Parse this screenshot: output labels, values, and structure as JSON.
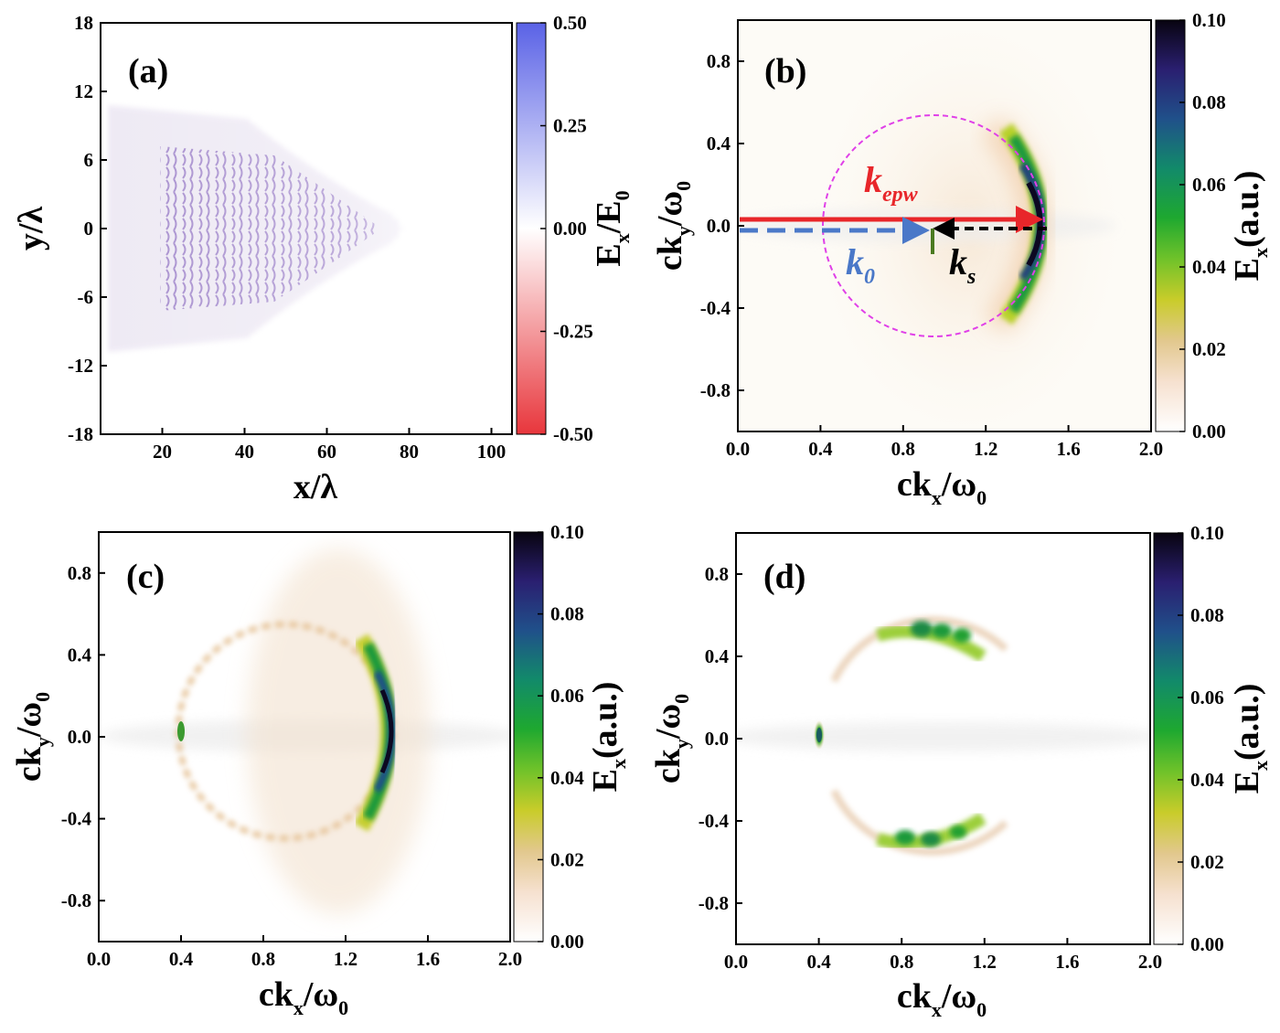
{
  "chart_data": [
    {
      "panel": "(a)",
      "type": "heatmap",
      "xlabel": "x/λ",
      "ylabel": "y/λ",
      "xlim": [
        5,
        105
      ],
      "ylim": [
        -18,
        18
      ],
      "xticks": [
        "20",
        "40",
        "60",
        "80",
        "100"
      ],
      "yticks": [
        "18",
        "12",
        "6",
        "0",
        "-6",
        "-12",
        "-18"
      ],
      "colorbar": {
        "label": "E_x/E_0",
        "ticks": [
          "0.50",
          "0.25",
          "0.00",
          "-0.25",
          "-0.50"
        ],
        "range": [
          -0.5,
          0.5
        ],
        "colors": [
          "#e03a3f",
          "#ffffff",
          "#5060e0"
        ]
      },
      "features": [
        {
          "kind": "wave_packet",
          "x_range": [
            10,
            75
          ],
          "y_half_width_start": 9,
          "peak_value": 0.2
        }
      ]
    },
    {
      "panel": "(b)",
      "type": "heatmap",
      "xlabel": "ck_x/ω_0",
      "ylabel": "ck_y/ω_0",
      "xlim": [
        0,
        2
      ],
      "ylim": [
        -1,
        1
      ],
      "xticks": [
        "0.0",
        "0.4",
        "0.8",
        "1.2",
        "1.6",
        "2.0"
      ],
      "yticks": [
        "0.8",
        "0.4",
        "0.0",
        "-0.4",
        "-0.8"
      ],
      "colorbar": {
        "label": "E_x(a.u.)",
        "ticks": [
          "0.10",
          "0.08",
          "0.06",
          "0.04",
          "0.02",
          "0.00"
        ],
        "range": [
          0,
          0.1
        ]
      },
      "features": [
        {
          "kind": "arc",
          "cx": 0.95,
          "cy": 0,
          "r": 0.47,
          "theta_range": [
            -70,
            70
          ],
          "peak_value": 0.1
        },
        {
          "kind": "circle",
          "cx": 0.95,
          "cy": 0,
          "r": 0.53,
          "style": "dashed",
          "color": "#e040e8"
        },
        {
          "kind": "vector",
          "name": "k_epw",
          "from": [
            0,
            0.02
          ],
          "to": [
            1.48,
            0.02
          ],
          "color": "#e8262a",
          "style": "solid"
        },
        {
          "kind": "vector",
          "name": "k_0",
          "from": [
            0,
            -0.02
          ],
          "to": [
            0.95,
            -0.02
          ],
          "color": "#4a78c8",
          "style": "dashed"
        },
        {
          "kind": "vector",
          "name": "k_s",
          "from": [
            1.48,
            -0.02
          ],
          "to": [
            0.95,
            -0.02
          ],
          "color": "#000000",
          "style": "dashed"
        }
      ]
    },
    {
      "panel": "(c)",
      "type": "heatmap",
      "xlabel": "ck_x/ω_0",
      "ylabel": "ck_y/ω_0",
      "xlim": [
        0,
        2
      ],
      "ylim": [
        -1,
        1
      ],
      "xticks": [
        "0.0",
        "0.4",
        "0.8",
        "1.2",
        "1.6",
        "2.0"
      ],
      "yticks": [
        "0.8",
        "0.4",
        "0.0",
        "-0.4",
        "-0.8"
      ],
      "colorbar": {
        "label": "E_x(a.u.)",
        "ticks": [
          "0.10",
          "0.08",
          "0.06",
          "0.04",
          "0.02",
          "0.00"
        ],
        "range": [
          0,
          0.1
        ]
      },
      "features": [
        {
          "kind": "ring",
          "cx": 0.91,
          "cy": 0,
          "r": 0.52,
          "peak_value": 0.012
        },
        {
          "kind": "arc",
          "cx": 0.95,
          "cy": 0,
          "r": 0.45,
          "theta_range": [
            -55,
            55
          ],
          "peak_value": 0.1
        },
        {
          "kind": "spot",
          "x": 0.4,
          "y": 0.02,
          "peak_value": 0.04
        }
      ]
    },
    {
      "panel": "(d)",
      "type": "heatmap",
      "xlabel": "ck_x/ω_0",
      "ylabel": "ck_y/ω_0",
      "xlim": [
        0,
        2
      ],
      "ylim": [
        -1,
        1
      ],
      "xticks": [
        "0.0",
        "0.4",
        "0.8",
        "1.2",
        "1.6",
        "2.0"
      ],
      "yticks": [
        "0.8",
        "0.4",
        "0.0",
        "-0.4",
        "-0.8"
      ],
      "colorbar": {
        "label": "E_x(a.u.)",
        "ticks": [
          "0.10",
          "0.08",
          "0.06",
          "0.04",
          "0.02",
          "0.00"
        ],
        "range": [
          0,
          0.1
        ]
      },
      "features": [
        {
          "kind": "arc",
          "cx": 0.91,
          "cy": 0,
          "r": 0.52,
          "theta_range": [
            30,
            150
          ],
          "peak_value": 0.045
        },
        {
          "kind": "arc",
          "cx": 0.91,
          "cy": 0,
          "r": 0.52,
          "theta_range": [
            -150,
            -30
          ],
          "peak_value": 0.045
        },
        {
          "kind": "spot",
          "x": 0.4,
          "y": 0.02,
          "peak_value": 0.07
        }
      ]
    }
  ]
}
